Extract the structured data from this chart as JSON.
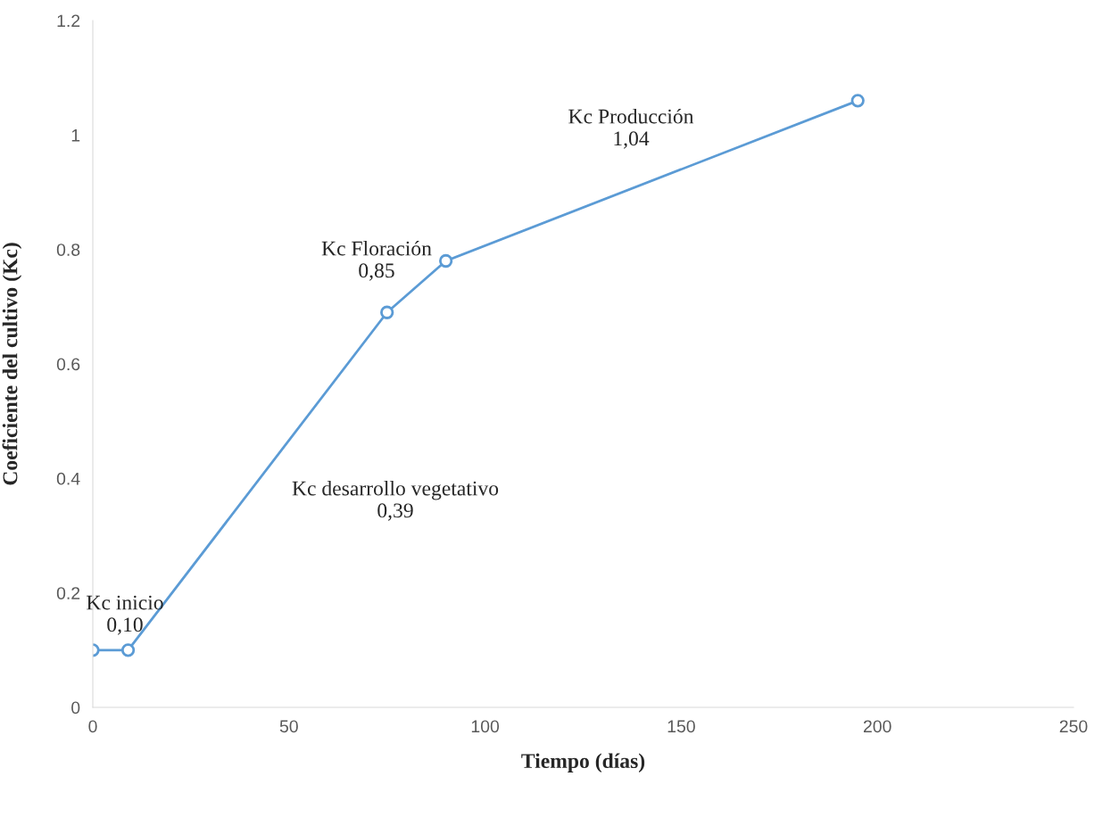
{
  "chart_data": {
    "type": "line",
    "xlabel": "Tiempo (días)",
    "ylabel": "Coeficiente del cultivo (Kc)",
    "x": [
      0,
      9,
      75,
      90,
      195
    ],
    "series": [
      {
        "color": "#5b9bd5",
        "values": [
          0.1,
          0.1,
          0.69,
          0.78,
          1.06
        ]
      }
    ],
    "marker": "circle",
    "line_style": "solid",
    "xlim": [
      0,
      250
    ],
    "xticks": [
      0,
      50,
      100,
      150,
      200,
      250
    ],
    "ylim": [
      0,
      1.2
    ],
    "yticks": [
      {
        "value": 0,
        "label": "0"
      },
      {
        "value": 0.2,
        "label": "0.2"
      },
      {
        "value": 0.4,
        "label": "0.4"
      },
      {
        "value": 0.6,
        "label": "0.6"
      },
      {
        "value": 0.8,
        "label": "0.8"
      },
      {
        "value": 1,
        "label": "1"
      },
      {
        "value": 1.2,
        "label": "1.2"
      }
    ],
    "grid": false,
    "legend": false,
    "annotations": [
      "Kc inicio\n0,10",
      "Kc desarrollo vegetativo\n0,39",
      "Kc Floración\n0,85",
      "Kc Producción\n1,04"
    ]
  }
}
